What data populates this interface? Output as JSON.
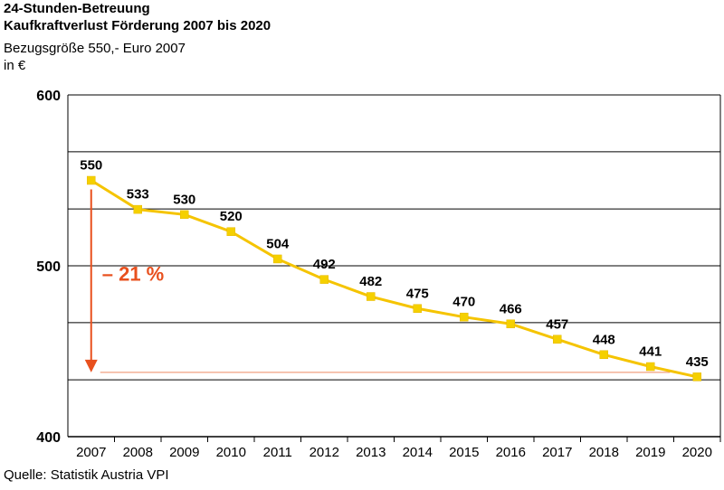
{
  "title_line1": "24-Stunden-Betreuung",
  "title_line2": "Kaufkraftverlust Förderung 2007 bis 2020",
  "subtitle": "Bezugsgröße 550,- Euro 2007",
  "unit_label": "in €",
  "source": "Quelle: Statistik Austria VPI",
  "colors": {
    "line": "#f5c400",
    "marker": "#f5d000",
    "arrow": "#e8501e",
    "refline": "#f0a080",
    "grid": "#000000"
  },
  "chart_data": {
    "type": "line",
    "categories": [
      "2007",
      "2008",
      "2009",
      "2010",
      "2011",
      "2012",
      "2013",
      "2014",
      "2015",
      "2016",
      "2017",
      "2018",
      "2019",
      "2020"
    ],
    "values": [
      550,
      533,
      530,
      520,
      504,
      492,
      482,
      475,
      470,
      466,
      457,
      448,
      441,
      435
    ],
    "ylim": [
      400,
      600
    ],
    "yticks": [
      400,
      500,
      600
    ],
    "gridlines": [
      433.3,
      466.7,
      500,
      533.3,
      566.7,
      600
    ],
    "annotation": {
      "text": "– 21 %",
      "from": 550,
      "to": 435
    },
    "grid": true,
    "legend": "none"
  }
}
